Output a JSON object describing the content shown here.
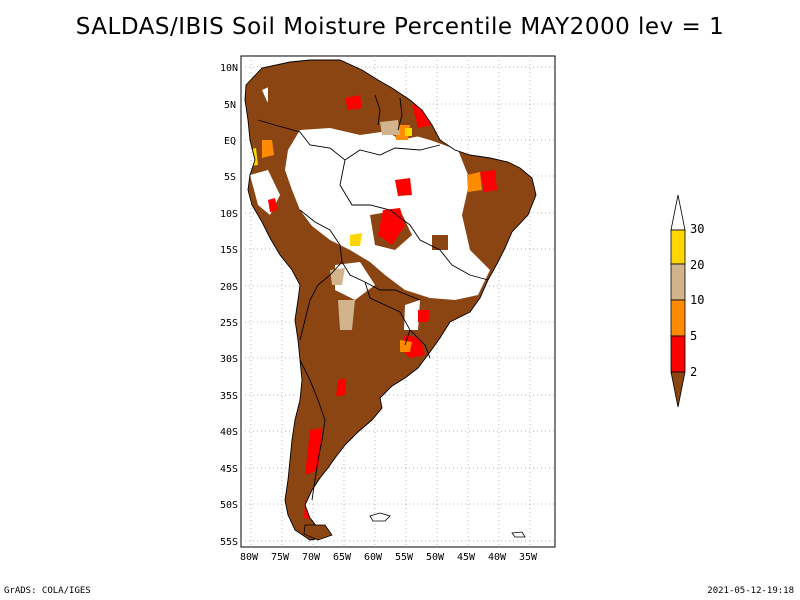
{
  "title": "SALDAS/IBIS Soil Moisture Percentile MAY2000 lev = 1",
  "footer": {
    "left": "GrADS: COLA/IGES",
    "right": "2021-05-12-19:18"
  },
  "map": {
    "lat_ticks": [
      "10N",
      "5N",
      "EQ",
      "5S",
      "10S",
      "15S",
      "20S",
      "25S",
      "30S",
      "35S",
      "40S",
      "45S",
      "50S",
      "55S"
    ],
    "lon_ticks": [
      "80W",
      "75W",
      "70W",
      "65W",
      "60W",
      "55W",
      "50W",
      "45W",
      "40W",
      "35W"
    ]
  },
  "colorbar": {
    "labels": [
      "30",
      "20",
      "10",
      "5",
      "2"
    ],
    "colors": {
      "gt30": "#ffffff",
      "20_30": "#ffd700",
      "10_20": "#d2b48c",
      "5_10": "#ff8c00",
      "2_5": "#ff0000",
      "lt2": "#8b4513"
    }
  },
  "colors": {
    "brown": "#8b4513",
    "red": "#ff0000",
    "orange": "#ff8c00",
    "tan": "#d2b48c",
    "yellow": "#ffd700"
  }
}
